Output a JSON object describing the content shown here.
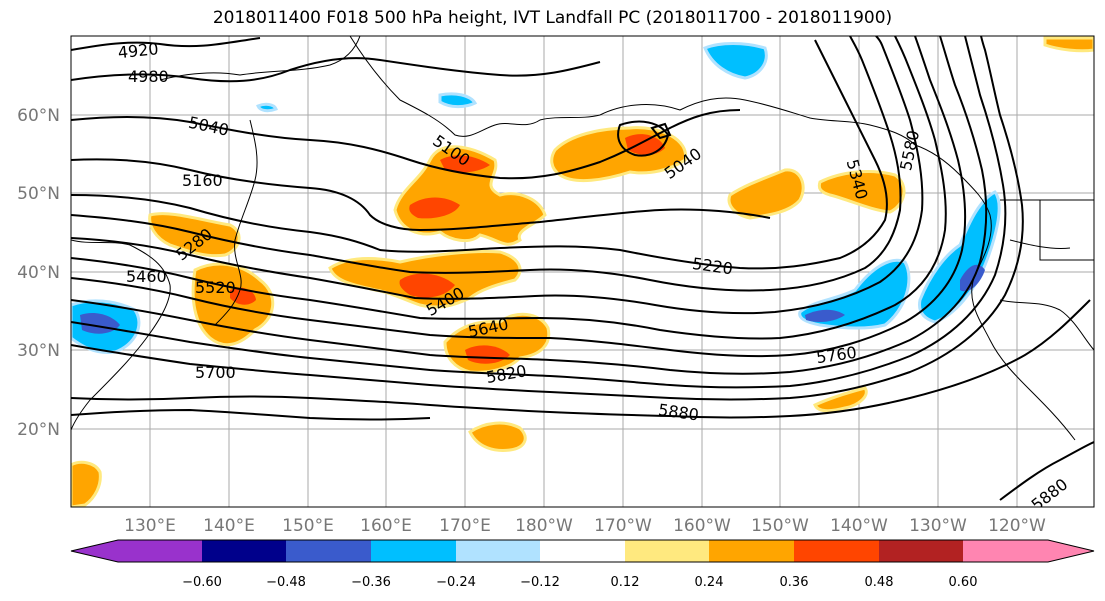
{
  "title": "2018011400 F018 500 hPa height, IVT Landfall PC (2018011700 - 2018011900)",
  "lat_labels": [
    "60°N",
    "50°N",
    "40°N",
    "30°N",
    "20°N"
  ],
  "lon_labels": [
    "130°E",
    "140°E",
    "150°E",
    "160°E",
    "170°E",
    "180°W",
    "170°W",
    "160°W",
    "150°W",
    "140°W",
    "130°W",
    "120°W"
  ],
  "contour_labels": [
    "4920",
    "4980",
    "5040",
    "5100",
    "5040",
    "5160",
    "5280",
    "5220",
    "5340",
    "5460",
    "5520",
    "5400",
    "5580",
    "5640",
    "5760",
    "5700",
    "5820",
    "5880",
    "5880"
  ],
  "colorbar": {
    "ticks": [
      "−0.60",
      "−0.48",
      "−0.36",
      "−0.24",
      "−0.12",
      "0.12",
      "0.24",
      "0.36",
      "0.48",
      "0.60"
    ],
    "colors": [
      "#9932CC",
      "#00008B",
      "#3A5BCC",
      "#00BFFF",
      "#B0E2FF",
      "#FFFFFF",
      "#FFE97F",
      "#FFA500",
      "#FF4500",
      "#B22222",
      "#FF85B1"
    ]
  }
}
